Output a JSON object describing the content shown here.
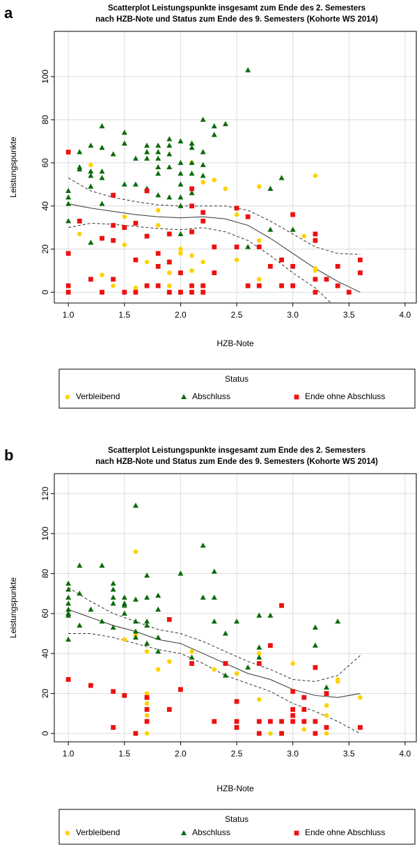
{
  "chart_data": [
    {
      "type": "scatter",
      "panel_label": "a",
      "title": "Scatterplot Leistungspunkte insgesamt zum Ende des 2. Semesters",
      "subtitle": "nach HZB-Note und Status zum Ende des 9. Semesters (Kohorte WS 2014)",
      "x_label": "HZB-Note",
      "y_label": "Leistungspunkte",
      "legend_title": "Status",
      "xlim": [
        0.875,
        4.1
      ],
      "ylim": [
        -5,
        121
      ],
      "grid": true,
      "xticks": [
        {
          "value": 1,
          "label": "1.0"
        },
        1.5,
        {
          "value": 2,
          "label": "2.0"
        },
        2.5,
        {
          "value": 3,
          "label": "3.0"
        },
        3.5,
        {
          "value": 4,
          "label": "4.0"
        }
      ],
      "yticks": [
        0,
        20,
        40,
        60,
        80,
        100
      ],
      "series": [
        {
          "name": "Verbleibend",
          "color": "#ffd200",
          "marker": "circle",
          "x": [
            1.1,
            1.2,
            1.3,
            1.4,
            1.5,
            1.5,
            1.6,
            1.7,
            1.8,
            1.8,
            1.9,
            1.9,
            2.0,
            2.0,
            2.1,
            2.1,
            2.1,
            2.2,
            2.2,
            2.3,
            2.4,
            2.5,
            2.5,
            2.7,
            2.7,
            2.7,
            3.1,
            3.2,
            3.2,
            3.2
          ],
          "values": [
            27,
            59,
            8,
            3,
            35,
            22,
            2,
            14,
            38,
            31,
            9,
            3,
            20,
            18,
            17,
            10,
            60,
            51,
            14,
            52,
            48,
            15,
            36,
            49,
            24,
            6,
            26,
            54,
            11,
            10
          ]
        },
        {
          "name": "Abschluss",
          "color": "#0b6b0b",
          "marker": "triangle",
          "x": [
            1.0,
            1.0,
            1.0,
            1.0,
            1.1,
            1.1,
            1.1,
            1.2,
            1.2,
            1.2,
            1.2,
            1.2,
            1.3,
            1.3,
            1.3,
            1.3,
            1.3,
            1.4,
            1.5,
            1.5,
            1.5,
            1.6,
            1.6,
            1.7,
            1.7,
            1.7,
            1.7,
            1.8,
            1.8,
            1.8,
            1.8,
            1.8,
            1.8,
            1.9,
            1.9,
            1.9,
            1.9,
            1.9,
            1.9,
            2.0,
            2.0,
            2.0,
            2.0,
            2.0,
            2.0,
            2.0,
            2.1,
            2.1,
            2.1,
            2.1,
            2.1,
            2.2,
            2.2,
            2.2,
            2.2,
            2.3,
            2.3,
            2.4,
            2.6,
            2.6,
            2.8,
            2.8,
            2.9,
            3.0
          ],
          "values": [
            47,
            44,
            41,
            33,
            65,
            58,
            57,
            68,
            56,
            54,
            49,
            23,
            77,
            67,
            56,
            53,
            41,
            64,
            74,
            69,
            50,
            62,
            50,
            68,
            65,
            62,
            48,
            68,
            65,
            62,
            58,
            55,
            45,
            71,
            68,
            64,
            58,
            44,
            14,
            70,
            60,
            55,
            50,
            44,
            40,
            27,
            69,
            67,
            60,
            55,
            46,
            80,
            65,
            59,
            54,
            77,
            73,
            78,
            103,
            21,
            48,
            29,
            53,
            29
          ]
        },
        {
          "name": "Ende ohne Abschluss",
          "color": "#ee1111",
          "marker": "square",
          "x": [
            1.0,
            1.0,
            1.0,
            1.0,
            1.1,
            1.2,
            1.3,
            1.3,
            1.4,
            1.4,
            1.4,
            1.4,
            1.5,
            1.5,
            1.6,
            1.6,
            1.6,
            1.7,
            1.7,
            1.7,
            1.8,
            1.8,
            1.8,
            1.9,
            1.9,
            1.9,
            2.0,
            2.0,
            2.1,
            2.1,
            2.1,
            2.1,
            2.1,
            2.2,
            2.2,
            2.2,
            2.2,
            2.3,
            2.3,
            2.5,
            2.5,
            2.6,
            2.6,
            2.7,
            2.7,
            2.8,
            2.9,
            2.9,
            3.0,
            3.0,
            3.0,
            3.2,
            3.2,
            3.2,
            3.2,
            3.3,
            3.4,
            3.4,
            3.5,
            3.6,
            3.6
          ],
          "values": [
            65,
            18,
            3,
            0,
            33,
            6,
            25,
            0,
            45,
            31,
            24,
            6,
            30,
            0,
            32,
            15,
            0,
            47,
            26,
            3,
            18,
            12,
            3,
            27,
            14,
            0,
            9,
            0,
            48,
            40,
            28,
            3,
            0,
            37,
            33,
            3,
            0,
            21,
            9,
            39,
            21,
            35,
            3,
            21,
            3,
            12,
            15,
            3,
            36,
            12,
            3,
            27,
            24,
            6,
            0,
            6,
            12,
            3,
            0,
            15,
            9
          ]
        }
      ],
      "fit": {
        "x": [
          1.0,
          1.2,
          1.4,
          1.6,
          1.8,
          2.0,
          2.2,
          2.4,
          2.6,
          2.8,
          3.0,
          3.2,
          3.4,
          3.6
        ],
        "values": [
          41,
          39,
          37.5,
          36,
          35,
          34.5,
          35,
          34,
          31,
          25,
          18,
          11,
          5,
          0
        ],
        "upper": [
          53,
          47,
          44,
          42,
          40.5,
          40,
          40,
          40,
          38,
          33,
          27,
          21,
          18,
          17.5
        ],
        "lower": [
          30,
          32,
          31.5,
          30.5,
          29.5,
          29,
          30,
          28,
          24,
          17,
          9,
          2,
          -8,
          -18
        ]
      }
    },
    {
      "type": "scatter",
      "panel_label": "b",
      "title": "Scatterplot Leistungspunkte insgesamt zum Ende des 2. Semesters",
      "subtitle": "nach HZB-Note und Status zum Ende des 9. Semesters (Kohorte WS 2014)",
      "x_label": "HZB-Note",
      "y_label": "Leistungspunkte",
      "legend_title": "Status",
      "xlim": [
        0.875,
        4.1
      ],
      "ylim": [
        -4.2,
        130
      ],
      "grid": true,
      "xticks": [
        {
          "value": 1,
          "label": "1.0"
        },
        1.5,
        {
          "value": 2,
          "label": "2.0"
        },
        2.5,
        {
          "value": 3,
          "label": "3.0"
        },
        3.5,
        {
          "value": 4,
          "label": "4.0"
        }
      ],
      "yticks": [
        0,
        20,
        40,
        60,
        80,
        100,
        120
      ],
      "series": [
        {
          "name": "Verbleibend",
          "color": "#ffd200",
          "marker": "circle",
          "x": [
            1.5,
            1.6,
            1.6,
            1.7,
            1.7,
            1.7,
            1.7,
            1.7,
            1.8,
            1.9,
            2.1,
            2.3,
            2.5,
            2.7,
            2.7,
            2.8,
            3.0,
            3.1,
            3.3,
            3.3,
            3.3,
            3.4,
            3.4,
            3.6
          ],
          "values": [
            47,
            91,
            49,
            41,
            20,
            15,
            9,
            0,
            32,
            36,
            41,
            32,
            30,
            40,
            17,
            0,
            35,
            2,
            14,
            9,
            0,
            26,
            27,
            18
          ]
        },
        {
          "name": "Abschluss",
          "color": "#0b6b0b",
          "marker": "triangle",
          "x": [
            1.0,
            1.0,
            1.0,
            1.0,
            1.0,
            1.0,
            1.0,
            1.0,
            1.1,
            1.1,
            1.1,
            1.2,
            1.3,
            1.3,
            1.4,
            1.4,
            1.4,
            1.4,
            1.4,
            1.5,
            1.5,
            1.5,
            1.5,
            1.6,
            1.6,
            1.6,
            1.6,
            1.6,
            1.7,
            1.7,
            1.7,
            1.7,
            1.7,
            1.8,
            1.8,
            1.8,
            1.8,
            2.0,
            2.1,
            2.2,
            2.2,
            2.3,
            2.3,
            2.3,
            2.4,
            2.4,
            2.5,
            2.6,
            2.7,
            2.7,
            2.7,
            2.8,
            3.2,
            3.2,
            3.3,
            3.4
          ],
          "values": [
            75,
            72,
            68,
            65,
            62,
            60,
            59,
            47,
            84,
            70,
            54,
            62,
            84,
            56,
            75,
            72,
            68,
            65,
            53,
            68,
            65,
            64,
            60,
            114,
            67,
            56,
            51,
            48,
            79,
            68,
            56,
            54,
            45,
            69,
            62,
            48,
            41,
            80,
            38,
            94,
            68,
            81,
            68,
            56,
            50,
            29,
            56,
            33,
            59,
            43,
            38,
            59,
            53,
            44,
            23,
            56
          ]
        },
        {
          "name": "Ende ohne Abschluss",
          "color": "#ee1111",
          "marker": "square",
          "x": [
            1.0,
            1.2,
            1.4,
            1.4,
            1.5,
            1.6,
            1.7,
            1.7,
            1.7,
            1.9,
            1.9,
            2.0,
            2.1,
            2.3,
            2.4,
            2.5,
            2.5,
            2.5,
            2.7,
            2.7,
            2.7,
            2.8,
            2.8,
            2.9,
            2.9,
            2.9,
            3.0,
            3.0,
            3.0,
            3.0,
            3.1,
            3.1,
            3.1,
            3.2,
            3.2,
            3.2,
            3.3,
            3.3,
            3.6
          ],
          "values": [
            27,
            24,
            21,
            3,
            19,
            0,
            18,
            12,
            6,
            57,
            12,
            22,
            35,
            6,
            35,
            16,
            6,
            3,
            35,
            6,
            0,
            44,
            6,
            64,
            6,
            0,
            21,
            12,
            9,
            6,
            18,
            12,
            6,
            33,
            6,
            0,
            20,
            3,
            3
          ]
        }
      ],
      "fit": {
        "x": [
          1.0,
          1.2,
          1.4,
          1.6,
          1.8,
          2.0,
          2.2,
          2.4,
          2.6,
          2.8,
          3.0,
          3.2,
          3.4,
          3.6
        ],
        "values": [
          62,
          58,
          54,
          51,
          47,
          45,
          40,
          35,
          30,
          27,
          22,
          19,
          18,
          20
        ],
        "upper": [
          73,
          66,
          60,
          56,
          52,
          50,
          46,
          41,
          36,
          32,
          27,
          26,
          29,
          39
        ],
        "lower": [
          50,
          50,
          48,
          45,
          42,
          40,
          35,
          29,
          25,
          21,
          15,
          11,
          6,
          0
        ]
      }
    }
  ]
}
